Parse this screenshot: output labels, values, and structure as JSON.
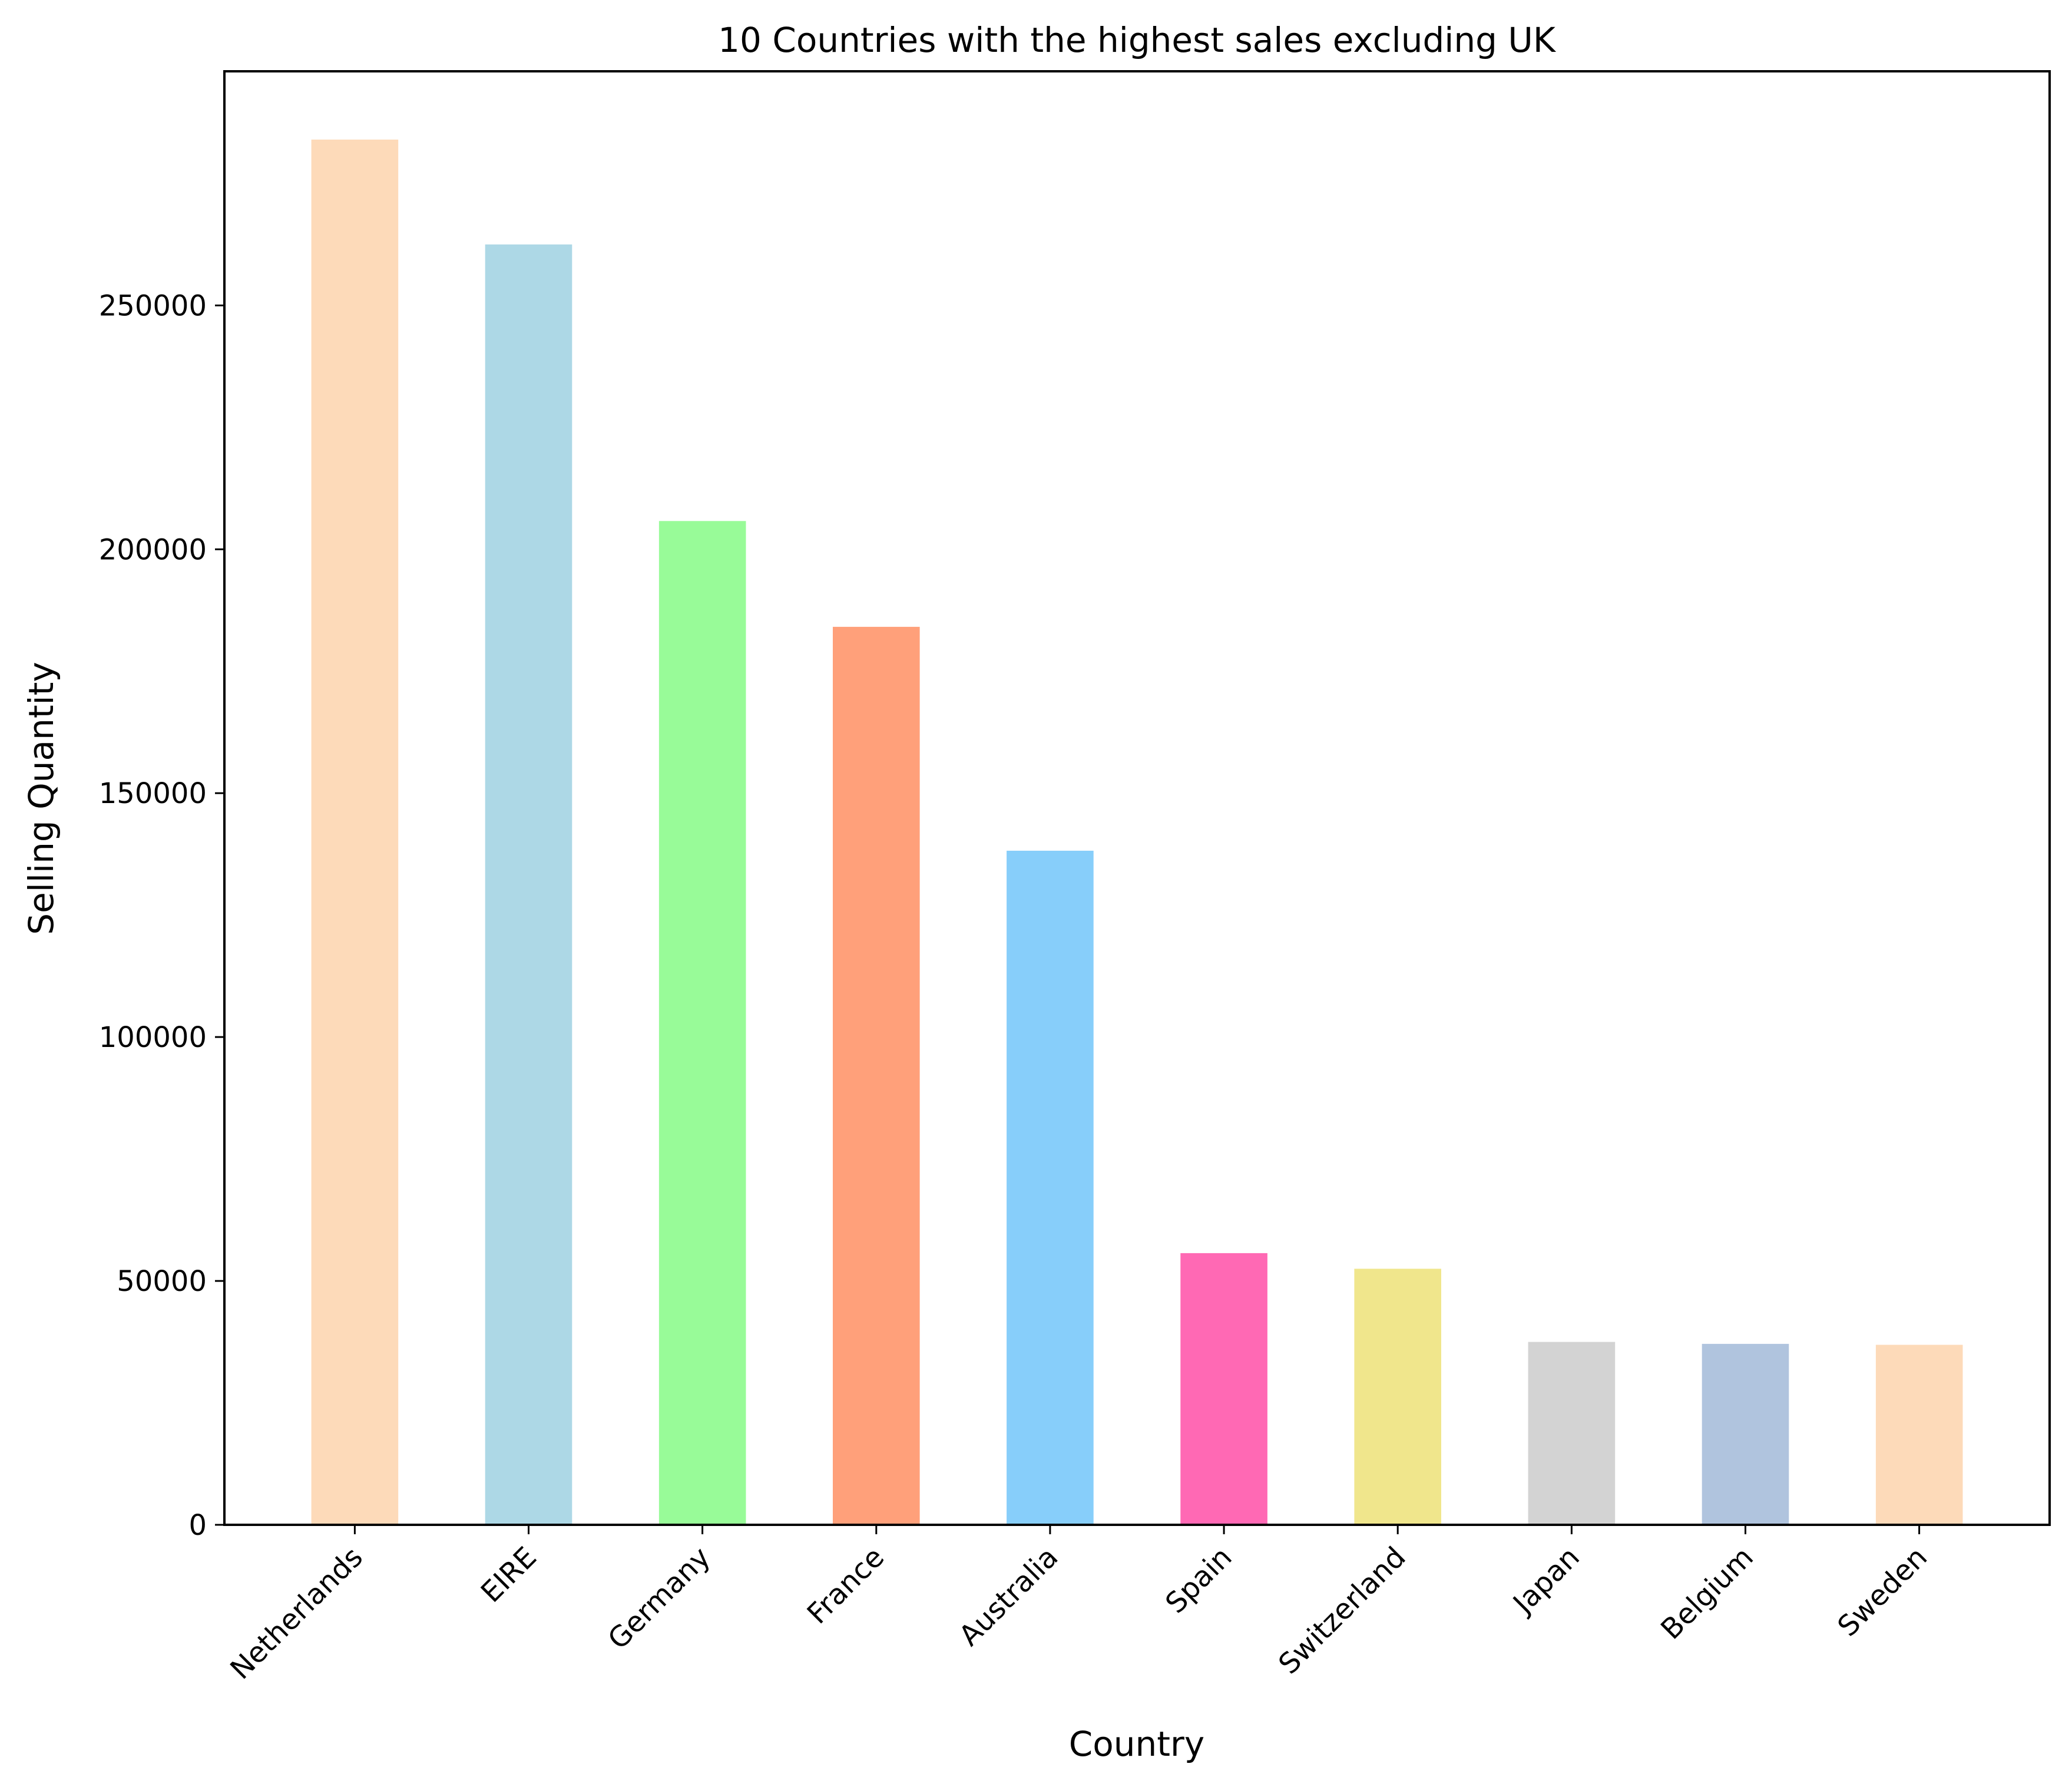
{
  "chart_data": {
    "type": "bar",
    "title": "10 Countries with the highest sales excluding UK",
    "xlabel": "Country",
    "ylabel": "Selling Quantity",
    "categories": [
      "Netherlands",
      "EIRE",
      "Germany",
      "France",
      "Australia",
      "Spain",
      "Switzerland",
      "Japan",
      "Belgium",
      "Sweden"
    ],
    "values": [
      284000,
      262500,
      205800,
      184100,
      138200,
      55700,
      52500,
      37500,
      37100,
      36900
    ],
    "bar_colors": [
      "#FDDAB9",
      "#ADD8E6",
      "#98FB98",
      "#FFA07A",
      "#87CEFA",
      "#FF69B4",
      "#F0E68C",
      "#D3D3D3",
      "#B0C4DE",
      "#FDDAB9"
    ],
    "ylim": [
      0,
      298000
    ],
    "yticks": [
      0,
      50000,
      100000,
      150000,
      200000,
      250000
    ],
    "ytick_labels": [
      "0",
      "50000",
      "100000",
      "150000",
      "200000",
      "250000"
    ],
    "grid": false,
    "legend": false
  }
}
